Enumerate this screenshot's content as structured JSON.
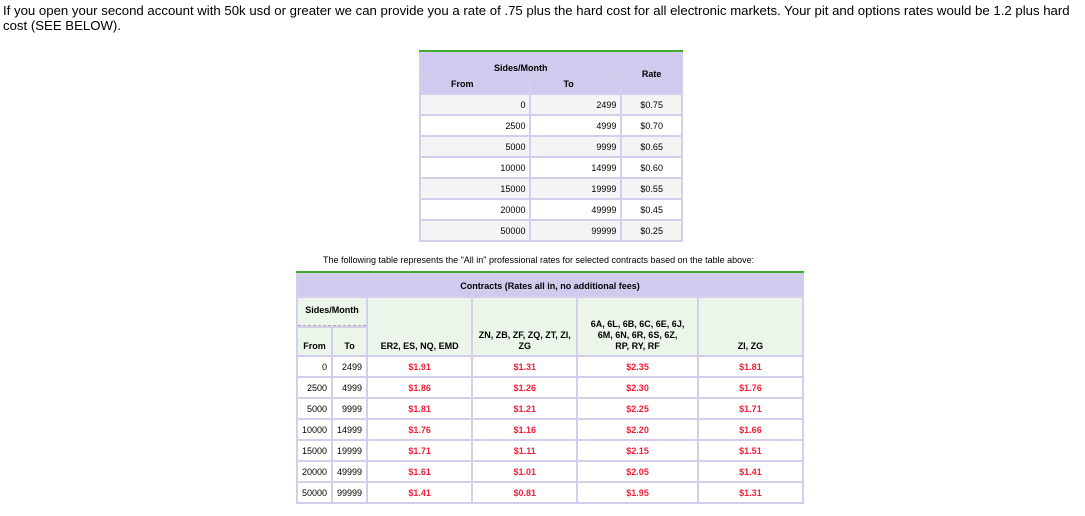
{
  "intro": "If you open your second account with 50k usd or greater we can provide you a rate of .75 plus the hard cost for all electronic markets.  Your pit and options rates would be 1.2 plus hard cost (SEE BELOW).",
  "table1": {
    "group_header": "Sides/Month",
    "from": "From",
    "to": "To",
    "rate": "Rate",
    "rows": [
      [
        "0",
        "2499",
        "$0.75"
      ],
      [
        "2500",
        "4999",
        "$0.70"
      ],
      [
        "5000",
        "9999",
        "$0.65"
      ],
      [
        "10000",
        "14999",
        "$0.60"
      ],
      [
        "15000",
        "19999",
        "$0.55"
      ],
      [
        "20000",
        "49999",
        "$0.45"
      ],
      [
        "50000",
        "99999",
        "$0.25"
      ]
    ]
  },
  "caption": "The following table represents the \"All in\" professional rates for selected contracts based on the table above:",
  "table2": {
    "title": "Contracts (Rates all in, no additional fees)",
    "group_header": "Sides/Month",
    "from": "From",
    "to": "To",
    "columns": [
      "ER2, ES, NQ, EMD",
      "ZN, ZB, ZF, ZQ, ZT, ZI, ZG",
      "6A, 6L, 6B, 6C, 6E, 6J, 6M, 6N, 6R, 6S, 6Z, RP, RY, RF",
      "ZI, ZG"
    ],
    "rows": [
      [
        "0",
        "2499",
        "$1.91",
        "$1.31",
        "$2.35",
        "$1.81"
      ],
      [
        "2500",
        "4999",
        "$1.86",
        "$1.26",
        "$2.30",
        "$1.76"
      ],
      [
        "5000",
        "9999",
        "$1.81",
        "$1.21",
        "$2.25",
        "$1.71"
      ],
      [
        "10000",
        "14999",
        "$1.76",
        "$1.16",
        "$2.20",
        "$1.66"
      ],
      [
        "15000",
        "19999",
        "$1.71",
        "$1.11",
        "$2.15",
        "$1.51"
      ],
      [
        "20000",
        "49999",
        "$1.61",
        "$1.01",
        "$2.05",
        "$1.41"
      ],
      [
        "50000",
        "99999",
        "$1.41",
        "$0.81",
        "$1.95",
        "$1.31"
      ]
    ]
  },
  "colors": {
    "price": "#f0203a",
    "header": "#d0cbee",
    "accent": "#3aae2a"
  }
}
